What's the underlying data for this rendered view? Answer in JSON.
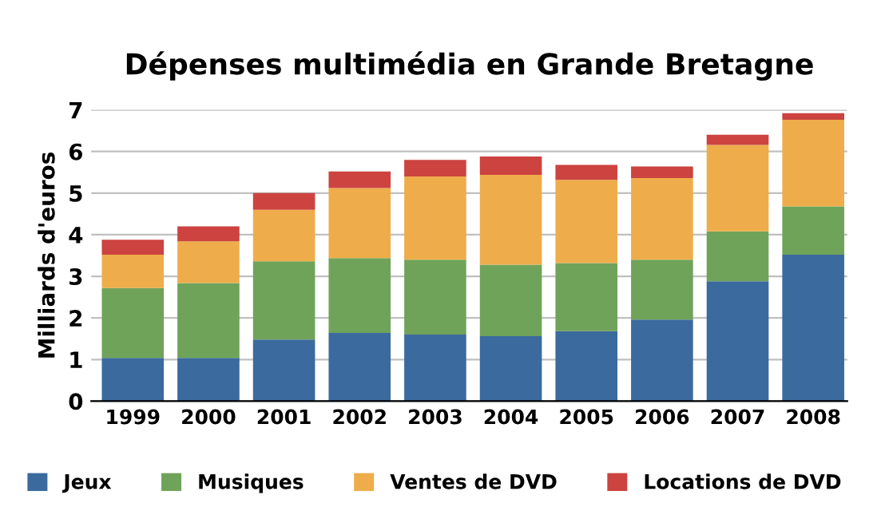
{
  "chart_data": {
    "type": "bar",
    "stacked": true,
    "title": "Dépenses multimédia en Grande Bretagne",
    "ylabel": "Milliards d'euros",
    "categories": [
      "1999",
      "2000",
      "2001",
      "2002",
      "2003",
      "2004",
      "2005",
      "2006",
      "2007",
      "2008"
    ],
    "series": [
      {
        "name": "Jeux",
        "color": "#3b6a9e",
        "values": [
          1.04,
          1.04,
          1.48,
          1.64,
          1.6,
          1.56,
          1.68,
          1.96,
          2.88,
          3.52
        ]
      },
      {
        "name": "Musiques",
        "color": "#6fa35a",
        "values": [
          1.68,
          1.8,
          1.88,
          1.8,
          1.8,
          1.72,
          1.64,
          1.44,
          1.2,
          1.16
        ]
      },
      {
        "name": "Ventes de DVD",
        "color": "#eead4a",
        "values": [
          0.8,
          1.0,
          1.24,
          1.68,
          2.0,
          2.16,
          2.0,
          1.96,
          2.08,
          2.08
        ]
      },
      {
        "name": "Locations de DVD",
        "color": "#cc4340",
        "values": [
          0.36,
          0.36,
          0.4,
          0.4,
          0.4,
          0.44,
          0.36,
          0.28,
          0.24,
          0.16
        ]
      }
    ],
    "ylim": [
      0,
      7
    ],
    "yticks": [
      0,
      1,
      2,
      3,
      4,
      5,
      6,
      7
    ],
    "grid": "y",
    "legend": "bottom"
  }
}
